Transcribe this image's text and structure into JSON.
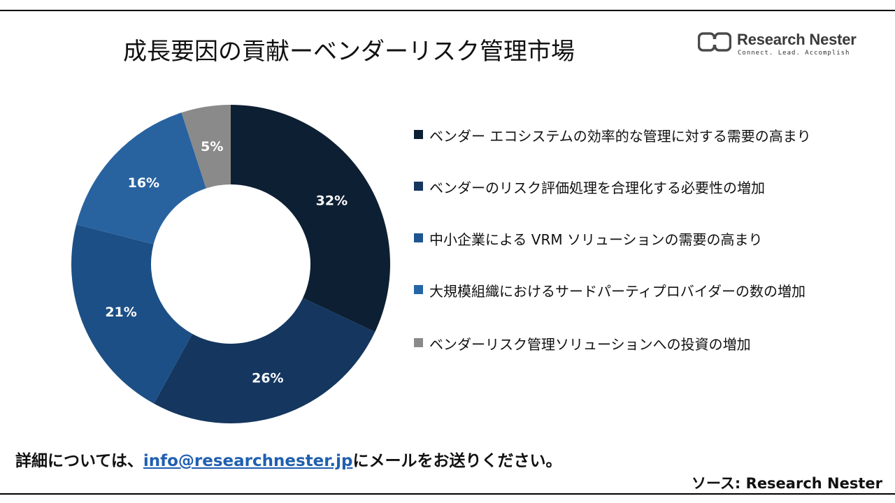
{
  "header": {
    "title": "成長要因の貢献ーベンダーリスク管理市場",
    "logo_name": "Research Nester",
    "logo_tagline": "Connect. Lead. Accomplish"
  },
  "chart_data": {
    "type": "pie",
    "donut": true,
    "categories": [
      "ベンダー エコシステムの効率的な管理に対する需要の高まり",
      "ベンダーのリスク評価処理を合理化する必要性の増加",
      "中小企業による VRM ソリューションの需要の高まり",
      "大規模組織におけるサードパーティプロバイダーの数の増加",
      "ベンダーリスク管理ソリューションへの投資の増加"
    ],
    "values": [
      32,
      26,
      21,
      16,
      5
    ],
    "labels": [
      "32%",
      "26%",
      "21%",
      "16%",
      "5%"
    ],
    "colors": [
      "#0d1f33",
      "#14365f",
      "#1c4f85",
      "#2863a0",
      "#8a8a8a"
    ],
    "legend_colors": [
      "#0d1f33",
      "#14365f",
      "#1f5591",
      "#2565a6",
      "#8a8a8a"
    ],
    "legend_position": "right",
    "title": ""
  },
  "footer": {
    "prefix": "詳細については、",
    "email": "info@researchnester.jp",
    "suffix": "にメールをお送りください。",
    "source": "ソース: Research Nester"
  }
}
